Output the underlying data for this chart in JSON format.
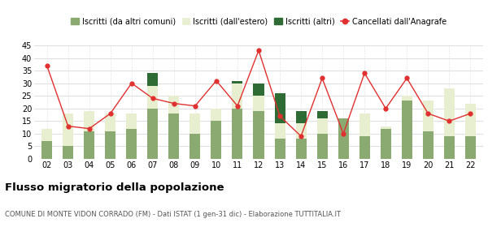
{
  "years": [
    "02",
    "03",
    "04",
    "05",
    "06",
    "07",
    "08",
    "09",
    "10",
    "11",
    "12",
    "13",
    "14",
    "15",
    "16",
    "17",
    "18",
    "19",
    "20",
    "21",
    "22"
  ],
  "iscritti_altri_comuni": [
    7,
    5,
    11,
    11,
    12,
    20,
    18,
    10,
    15,
    20,
    19,
    8,
    8,
    10,
    16,
    9,
    12,
    23,
    11,
    9,
    9
  ],
  "iscritti_estero": [
    5,
    13,
    8,
    7,
    6,
    9,
    7,
    8,
    5,
    10,
    6,
    6,
    6,
    6,
    0,
    9,
    1,
    2,
    12,
    19,
    13
  ],
  "iscritti_altri": [
    0,
    0,
    0,
    0,
    0,
    5,
    0,
    0,
    0,
    1,
    5,
    12,
    5,
    3,
    0,
    0,
    0,
    0,
    0,
    0,
    0
  ],
  "cancellati": [
    37,
    13,
    12,
    18,
    30,
    24,
    22,
    21,
    31,
    21,
    43,
    17,
    9,
    32,
    10,
    34,
    20,
    32,
    18,
    15,
    18
  ],
  "color_altri_comuni": "#8aaa72",
  "color_estero": "#e8efd0",
  "color_altri": "#2e6b35",
  "color_cancellati": "#e03030",
  "background_color": "#ffffff",
  "grid_color": "#d8d8d8",
  "ylim": [
    0,
    45
  ],
  "yticks": [
    0,
    5,
    10,
    15,
    20,
    25,
    30,
    35,
    40,
    45
  ],
  "title": "Flusso migratorio della popolazione",
  "subtitle": "COMUNE DI MONTE VIDON CORRADO (FM) - Dati ISTAT (1 gen-31 dic) - Elaborazione TUTTITALIA.IT",
  "legend_labels": [
    "Iscritti (da altri comuni)",
    "Iscritti (dall'estero)",
    "Iscritti (altri)",
    "Cancellati dall'Anagrafe"
  ]
}
